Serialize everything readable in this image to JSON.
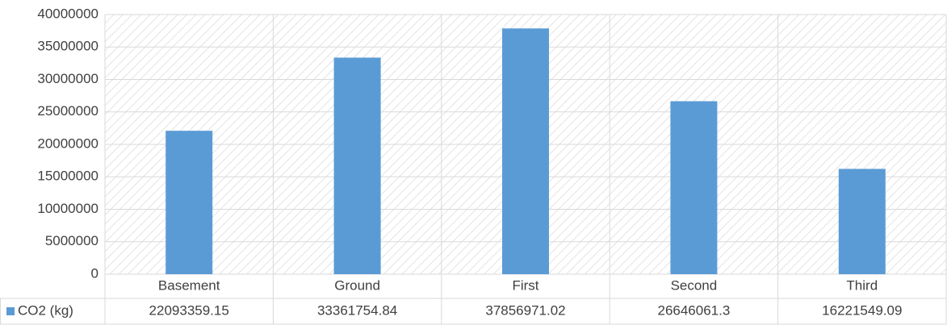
{
  "chart_data": {
    "type": "bar",
    "categories": [
      "Basement",
      "Ground",
      "First",
      "Second",
      "Third"
    ],
    "series": [
      {
        "name": "CO2 (kg)",
        "color": "#5b9bd5",
        "values": [
          22093359.15,
          33361754.84,
          37856971.02,
          26646061.3,
          16221549.09
        ]
      }
    ],
    "ylim": [
      0,
      40000000
    ],
    "yticks": [
      0,
      5000000,
      10000000,
      15000000,
      20000000,
      25000000,
      30000000,
      35000000,
      40000000
    ],
    "grid": true
  }
}
